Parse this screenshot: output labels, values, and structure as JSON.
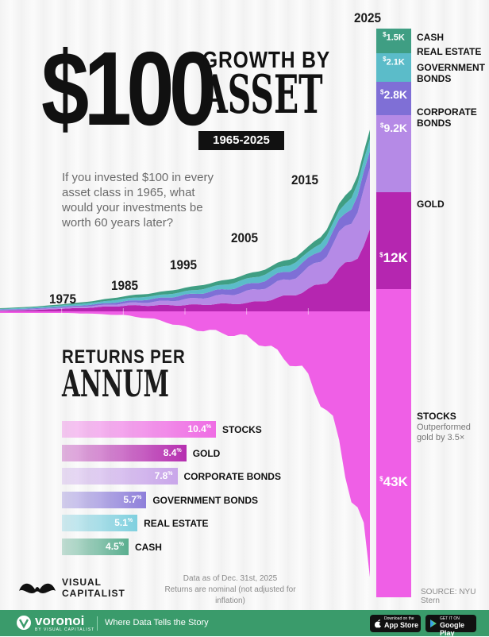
{
  "header": {
    "title_amount": "$100",
    "title_line1": "GROWTH BY",
    "title_line2": "ASSET",
    "years": "1965-2025",
    "intro": "If you invested $100 in every asset class in 1965, what would your investments be worth 60 years later?"
  },
  "year_labels": [
    "1975",
    "1985",
    "1995",
    "2005",
    "2015",
    "2025"
  ],
  "final_values": [
    {
      "name": "CASH",
      "value": "1.5K",
      "color": "#3f9e83"
    },
    {
      "name": "REAL ESTATE",
      "value": "2.1K",
      "color": "#5bbcc9"
    },
    {
      "name": "GOVERNMENT BONDS",
      "value": "2.8K",
      "color": "#7f6fd6"
    },
    {
      "name": "CORPORATE BONDS",
      "value": "9.2K",
      "color": "#b58ae6"
    },
    {
      "name": "GOLD",
      "value": "12K",
      "color": "#b526b0"
    },
    {
      "name": "STOCKS",
      "value": "43K",
      "color": "#ef5fe6"
    }
  ],
  "stocks_note": "Outperformed gold by 3.5×",
  "currency_symbol": "$",
  "returns": {
    "title_line1": "RETURNS PER",
    "title_line2": "ANNUM",
    "percent_symbol": "%"
  },
  "chart_data": [
    {
      "type": "area",
      "x": [
        1965,
        1975,
        1985,
        1995,
        2005,
        2015,
        2025
      ],
      "series": [
        {
          "name": "STOCKS",
          "values": [
            100,
            240,
            620,
            2600,
            4100,
            10500,
            43000
          ]
        },
        {
          "name": "GOLD",
          "values": [
            100,
            420,
            900,
            1000,
            1300,
            3400,
            12000
          ]
        },
        {
          "name": "CORPORATE BONDS",
          "values": [
            100,
            170,
            360,
            900,
            1800,
            3200,
            9200
          ]
        },
        {
          "name": "GOVERNMENT BONDS",
          "values": [
            100,
            150,
            320,
            690,
            1050,
            1500,
            2800
          ]
        },
        {
          "name": "REAL ESTATE",
          "values": [
            100,
            210,
            430,
            560,
            940,
            1000,
            2100
          ]
        },
        {
          "name": "CASH",
          "values": [
            100,
            180,
            390,
            580,
            760,
            880,
            1500
          ]
        }
      ],
      "colors": [
        "#ef5fe6",
        "#b526b0",
        "#b58ae6",
        "#7f6fd6",
        "#5bbcc9",
        "#3f9e83"
      ],
      "grid": false
    },
    {
      "type": "bar",
      "title": "RETURNS PER ANNUM",
      "categories": [
        "STOCKS",
        "GOLD",
        "CORPORATE BONDS",
        "GOVERNMENT BONDS",
        "REAL ESTATE",
        "CASH"
      ],
      "values": [
        10.4,
        8.4,
        7.8,
        5.7,
        5.1,
        4.5
      ],
      "colors": [
        "#ef6ce4",
        "#b62fb0",
        "#c9a6ea",
        "#8e7fda",
        "#7fd0df",
        "#5aae8f"
      ],
      "value_colors": [
        "#ffffff",
        "#ffffff",
        "#ffffff",
        "#ffffff",
        "#ffffff",
        "#ffffff"
      ]
    }
  ],
  "footer_notes": {
    "data_as_of": "Data as of Dec. 31st, 2025",
    "nominal": "Returns are nominal (not adjusted for inflation)",
    "source": "SOURCE: NYU Stern"
  },
  "brand": {
    "line1": "VISUAL",
    "line2": "CAPITALIST",
    "app_name": "voronoi",
    "app_sub": "BY VISUAL CAPITALIST",
    "tagline": "Where Data Tells the Story",
    "appstore_small": "Download on the",
    "appstore": "App Store",
    "play_small": "GET IT ON",
    "play": "Google Play"
  }
}
